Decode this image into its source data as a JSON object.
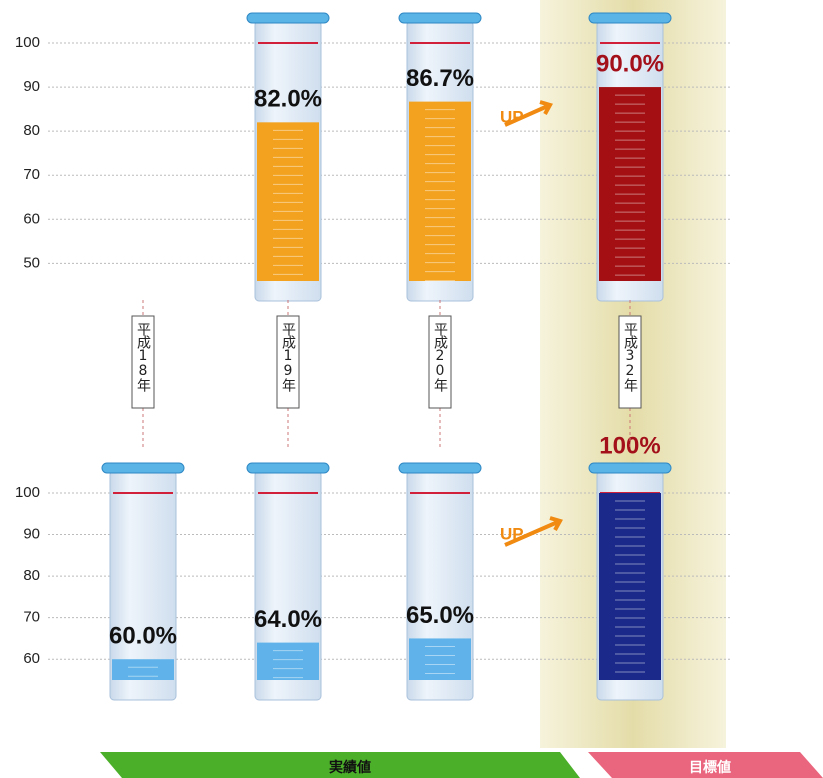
{
  "chart_data": [
    {
      "type": "bar",
      "categories": [
        "平成18年",
        "平成19年",
        "平成20年",
        "平成32年"
      ],
      "values": [
        null,
        82.0,
        86.7,
        90.0
      ],
      "value_labels": [
        null,
        "82.0%",
        "86.7%",
        "90.0%"
      ],
      "colors": [
        "#f2a21e",
        "#f2a21e",
        "#f2a21e",
        "#a30f12"
      ],
      "label_colors": [
        "#111",
        "#111",
        "#111",
        "#a3101a"
      ],
      "ylim": [
        46,
        100
      ],
      "yticks": [
        50,
        60,
        70,
        80,
        90,
        100
      ],
      "grid": true,
      "annotation": "UP"
    },
    {
      "type": "bar",
      "values": [
        60.0,
        64.0,
        65.0,
        100
      ],
      "value_labels": [
        "60.0%",
        "64.0%",
        "65.0%",
        "100%"
      ],
      "colors": [
        "#5fb3ea",
        "#5fb3ea",
        "#5fb3ea",
        "#1b2a8a"
      ],
      "label_colors": [
        "#111",
        "#111",
        "#111",
        "#a3101a"
      ],
      "ylim": [
        55,
        100
      ],
      "yticks": [
        60,
        70,
        80,
        90,
        100
      ],
      "grid": true,
      "annotation": "UP"
    }
  ],
  "footer": {
    "actual": "実績値",
    "target": "目標値"
  }
}
